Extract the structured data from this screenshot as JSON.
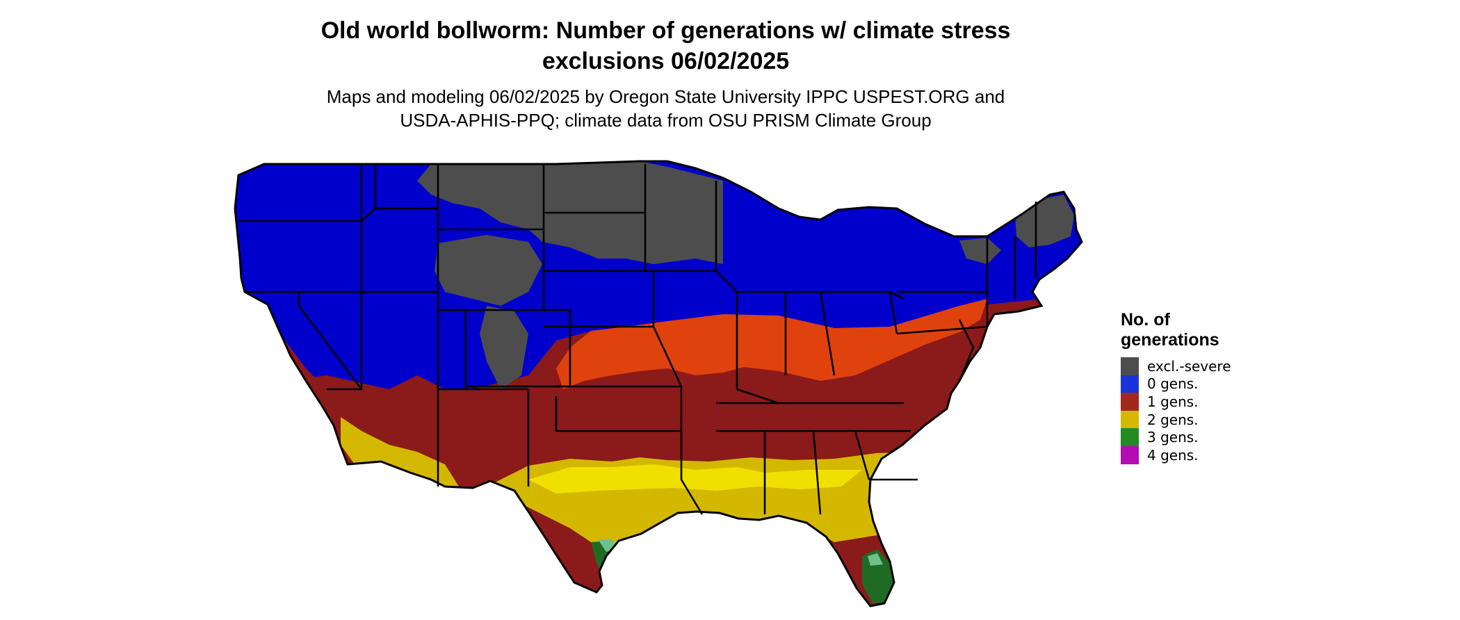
{
  "title": {
    "line1": "Old world bollworm: Number of generations w/ climate stress",
    "line2": "exclusions 06/02/2025"
  },
  "subtitle": {
    "line1": "Maps and modeling 06/02/2025 by Oregon State University IPPC USPEST.ORG and",
    "line2": "USDA-APHIS-PPQ; climate data from OSU PRISM Climate Group"
  },
  "legend": {
    "title_line1": "No. of",
    "title_line2": "generations",
    "items": [
      {
        "label": "excl.-severe",
        "color": "#4d4d4d"
      },
      {
        "label": "0 gens.",
        "color": "#1a33d6"
      },
      {
        "label": "1 gens.",
        "color": "#a3281c"
      },
      {
        "label": "2 gens.",
        "color": "#d6b800"
      },
      {
        "label": "3 gens.",
        "color": "#228b22"
      },
      {
        "label": "4 gens.",
        "color": "#b30cb3"
      }
    ]
  },
  "map": {
    "region": "contiguous-united-states",
    "colors": {
      "excluded": "#4d4d4d",
      "zero": "#0000cc",
      "one": "#8b1a1a",
      "one_light": "#e0420e",
      "two": "#d4b800",
      "two_light": "#f0e000",
      "three": "#1f6b24",
      "three_light": "#6fc08a",
      "border": "#000000"
    }
  }
}
